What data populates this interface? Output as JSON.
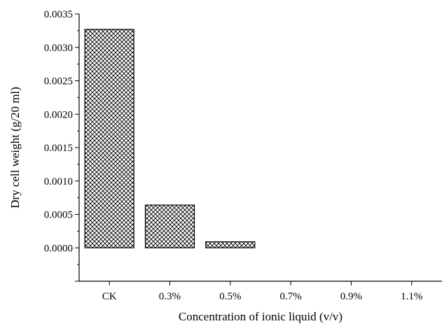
{
  "chart_data": {
    "type": "bar",
    "title": "",
    "xlabel": "Concentration of ionic liquid (v/v)",
    "ylabel": "Dry cell weight (g/20 ml)",
    "categories": [
      "CK",
      "0.3%",
      "0.5%",
      "0.7%",
      "0.9%",
      "1.1%"
    ],
    "values": [
      0.00327,
      0.00064,
      9e-05,
      0.0,
      0.0,
      0.0
    ],
    "ylim": [
      -0.0005,
      0.0035
    ],
    "yticks": [
      "0.0000",
      "0.0005",
      "0.0010",
      "0.0015",
      "0.0020",
      "0.0025",
      "0.0030",
      "0.0035"
    ],
    "grid": false,
    "bar_pattern": "crosshatch",
    "colors": {
      "bar_fill": "#ffffff",
      "hatch": "#000000",
      "axis": "#000000"
    }
  }
}
